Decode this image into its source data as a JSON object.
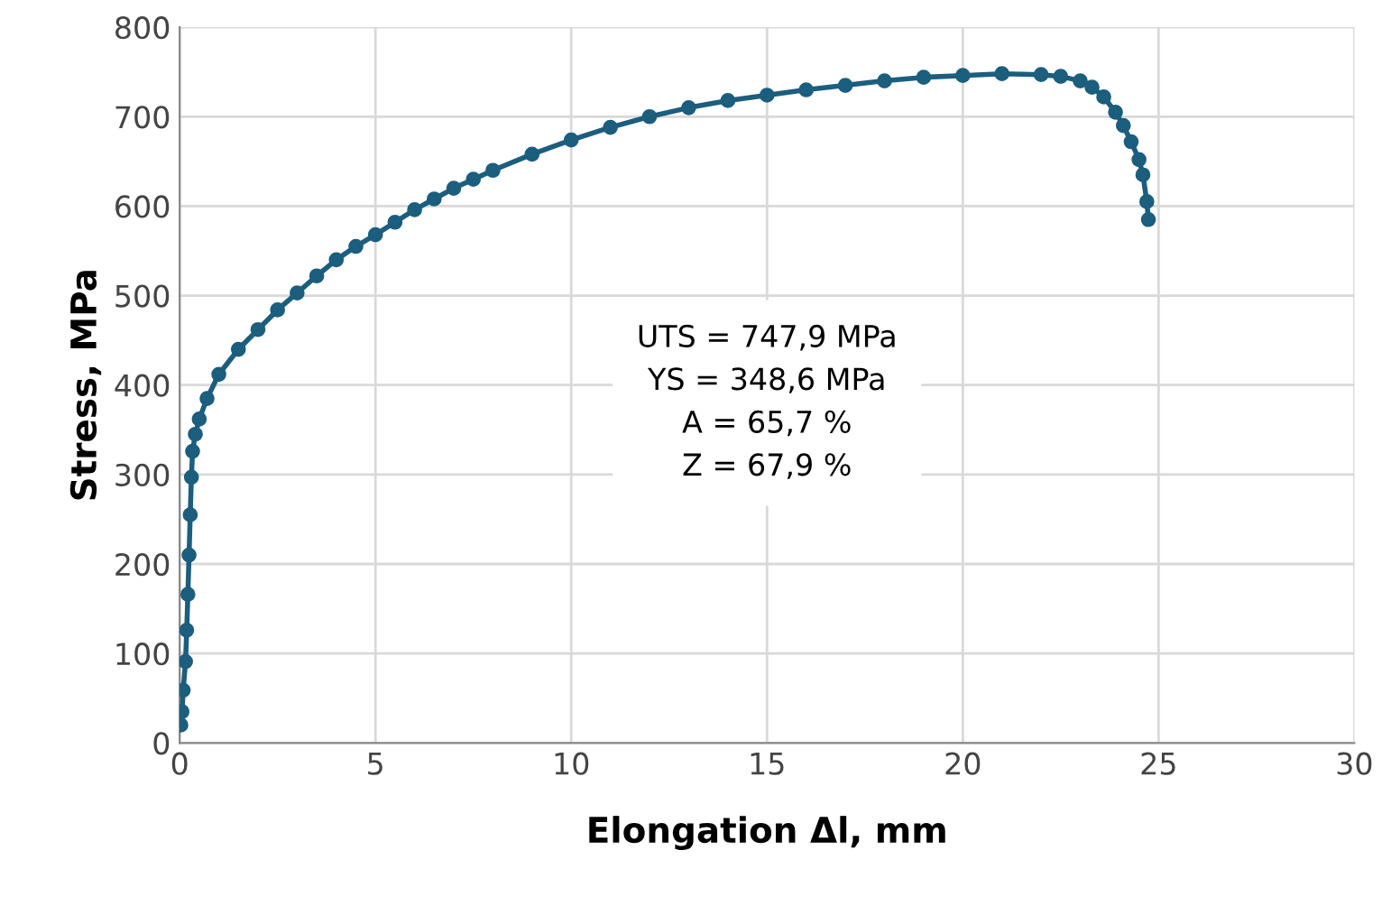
{
  "chart_data": {
    "type": "line",
    "xlabel": "Elongation Δl, mm",
    "ylabel": "Stress, MPa",
    "x": [
      0.03,
      0.06,
      0.09,
      0.15,
      0.18,
      0.21,
      0.24,
      0.27,
      0.3,
      0.33,
      0.4,
      0.5,
      0.7,
      1.0,
      1.5,
      2.0,
      2.5,
      3.0,
      3.5,
      4.0,
      4.5,
      5.0,
      5.5,
      6.0,
      6.5,
      7.0,
      7.5,
      8.0,
      9.0,
      10.0,
      11.0,
      12.0,
      13.0,
      14.0,
      15.0,
      16.0,
      17.0,
      18.0,
      19.0,
      20.0,
      21.0,
      22.0,
      22.5,
      23.0,
      23.3,
      23.6,
      23.9,
      24.1,
      24.3,
      24.5,
      24.6,
      24.7,
      24.74
    ],
    "series": [
      {
        "color": "#1b5e7e",
        "values": [
          20,
          35,
          59,
          91,
          126,
          166,
          210,
          255,
          297,
          326,
          345,
          362,
          385,
          412,
          440,
          462,
          484,
          503,
          522,
          540,
          555,
          568,
          582,
          596,
          608,
          620,
          630,
          640,
          658,
          674,
          688,
          700,
          710,
          718,
          724,
          730,
          735,
          740,
          744,
          746,
          748,
          747,
          745,
          740,
          733,
          722,
          705,
          690,
          672,
          652,
          635,
          605,
          585
        ]
      }
    ],
    "xlim": [
      0,
      30
    ],
    "ylim": [
      0,
      800
    ],
    "xticks": [
      0,
      5,
      10,
      15,
      20,
      25,
      30
    ],
    "yticks": [
      0,
      100,
      200,
      300,
      400,
      500,
      600,
      700,
      800
    ],
    "grid": true,
    "marker": "circle",
    "line_style": "solid",
    "annotations": [
      "UTS = 747,9 MPa",
      "YS = 348,6 MPa",
      "A = 65,7 %",
      "Z = 67,9 %"
    ]
  }
}
